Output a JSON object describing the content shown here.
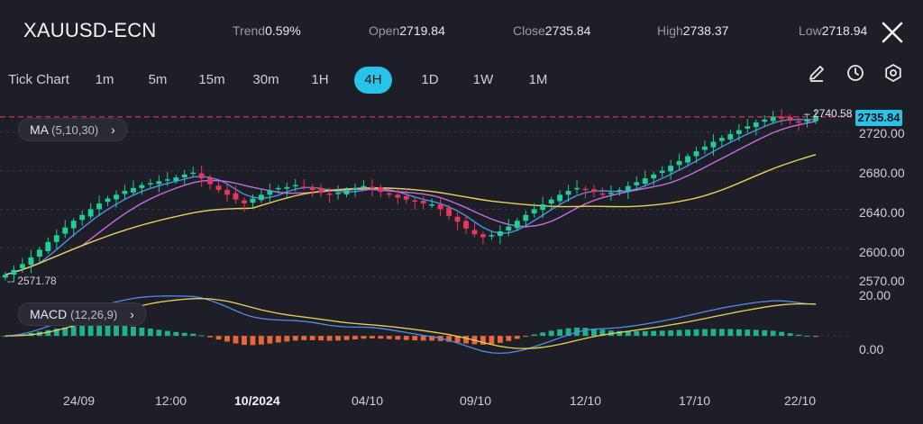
{
  "header": {
    "symbol": "XAUUSD-ECN",
    "trend_label": "Trend",
    "trend_value": "0.59%",
    "open_label": "Open",
    "open_value": "2719.84",
    "close_label": "Close",
    "close_value": "2735.84",
    "high_label": "High",
    "high_value": "2738.37",
    "low_label": "Low",
    "low_value": "2718.94"
  },
  "timeframes": [
    {
      "label": "Tick Chart",
      "active": false
    },
    {
      "label": "1m",
      "active": false
    },
    {
      "label": "5m",
      "active": false
    },
    {
      "label": "15m",
      "active": false
    },
    {
      "label": "30m",
      "active": false
    },
    {
      "label": "1H",
      "active": false
    },
    {
      "label": "4H",
      "active": true
    },
    {
      "label": "1D",
      "active": false
    },
    {
      "label": "1W",
      "active": false
    },
    {
      "label": "1M",
      "active": false
    }
  ],
  "tools": [
    "pencil-icon",
    "clock-icon",
    "settings-icon"
  ],
  "indicators": {
    "ma": {
      "name": "MA",
      "params": "(5,10,30)"
    },
    "macd": {
      "name": "MACD",
      "params": "(12,26,9)"
    }
  },
  "price_axis": [
    "2720.00",
    "2680.00",
    "2640.00",
    "2600.00",
    "2570.00"
  ],
  "macd_axis": [
    "20.00",
    "0.00"
  ],
  "current_price": "2735.84",
  "max_label": "2740.58",
  "min_label": "2571.78",
  "date_axis": [
    {
      "label": "24/09",
      "bold": false
    },
    {
      "label": "12:00",
      "bold": false
    },
    {
      "label": "10/2024",
      "bold": true
    },
    {
      "label": "04/10",
      "bold": false
    },
    {
      "label": "09/10",
      "bold": false
    },
    {
      "label": "12/10",
      "bold": false
    },
    {
      "label": "17/10",
      "bold": false
    },
    {
      "label": "22/10",
      "bold": false
    }
  ],
  "colors": {
    "background": "#1e1e26",
    "accent": "#27c3e8",
    "bull": "#1fcf9a",
    "bear": "#e8375a",
    "ma5": "#4f8ee8",
    "ma10": "#c46fe0",
    "ma30": "#e8d25a",
    "hist_pos": "#1fb38a",
    "hist_neg": "#e8663a",
    "macd_line": "#4f8ee8",
    "signal_line": "#e8d25a",
    "current_price_line": "#e8375a"
  },
  "chart_data": {
    "type": "candlestick",
    "timeframe": "4H",
    "price_range": [
      2560,
      2745
    ],
    "price_ticks": [
      2720,
      2680,
      2640,
      2600,
      2570
    ],
    "current_price": 2735.84,
    "max_price": 2740.58,
    "min_price": 2571.78,
    "closes": [
      2572,
      2577,
      2583,
      2590,
      2598,
      2606,
      2613,
      2621,
      2628,
      2634,
      2640,
      2646,
      2651,
      2655,
      2659,
      2662,
      2665,
      2667,
      2669,
      2671,
      2673,
      2676,
      2678,
      2672,
      2666,
      2660,
      2655,
      2650,
      2646,
      2651,
      2655,
      2659,
      2662,
      2663,
      2665,
      2663,
      2660,
      2657,
      2655,
      2657,
      2660,
      2662,
      2664,
      2662,
      2658,
      2655,
      2652,
      2650,
      2648,
      2646,
      2645,
      2640,
      2633,
      2627,
      2620,
      2614,
      2611,
      2613,
      2617,
      2622,
      2628,
      2634,
      2640,
      2645,
      2650,
      2655,
      2659,
      2662,
      2660,
      2658,
      2656,
      2657,
      2660,
      2664,
      2668,
      2672,
      2676,
      2680,
      2685,
      2690,
      2695,
      2700,
      2705,
      2710,
      2714,
      2718,
      2722,
      2726,
      2730,
      2733,
      2736,
      2734,
      2732,
      2730,
      2733,
      2736
    ],
    "macd_range": [
      -26,
      24
    ],
    "macd_ticks": [
      20,
      0
    ]
  }
}
